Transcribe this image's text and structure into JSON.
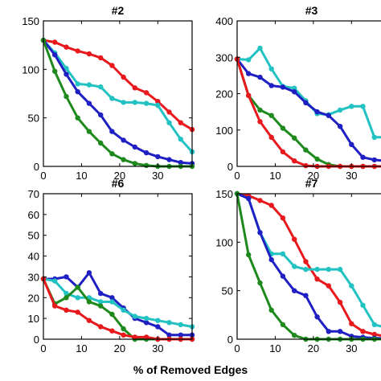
{
  "figure": {
    "xlabel": "% of Removed Edges",
    "colors": {
      "red": "#e8191c",
      "blue": "#1f1fc4",
      "green": "#1e8a1e",
      "cyan": "#22c2c2"
    }
  },
  "chart_data": [
    {
      "type": "line",
      "title": "#2",
      "xlabel": "% of Removed Edges",
      "ylabel": "",
      "xlim": [
        0,
        39
      ],
      "ylim": [
        0,
        150
      ],
      "xticks": [
        0,
        10,
        20,
        30
      ],
      "yticks": [
        0,
        50,
        100,
        150
      ],
      "series": [
        {
          "color": "red",
          "x": [
            0,
            3,
            6,
            9,
            12,
            15,
            18,
            21,
            24,
            27,
            30,
            33,
            36,
            39
          ],
          "values": [
            130,
            128,
            123,
            119,
            116,
            112,
            104,
            92,
            81,
            76,
            67,
            56,
            45,
            38
          ]
        },
        {
          "color": "cyan",
          "x": [
            0,
            3,
            6,
            9,
            12,
            15,
            18,
            21,
            24,
            27,
            30,
            33,
            36,
            39
          ],
          "values": [
            130,
            117,
            101,
            85,
            84,
            82,
            70,
            66,
            66,
            65,
            63,
            45,
            28,
            15
          ]
        },
        {
          "color": "blue",
          "x": [
            0,
            3,
            6,
            9,
            12,
            15,
            18,
            21,
            24,
            27,
            30,
            33,
            36,
            39
          ],
          "values": [
            130,
            115,
            95,
            77,
            65,
            53,
            36,
            27,
            20,
            14,
            10,
            7,
            4,
            3
          ]
        },
        {
          "color": "green",
          "x": [
            0,
            3,
            6,
            9,
            12,
            15,
            18,
            21,
            24,
            27,
            30,
            33,
            36,
            39
          ],
          "values": [
            130,
            98,
            72,
            50,
            36,
            24,
            13,
            7,
            3,
            1,
            0,
            0,
            0,
            0
          ]
        }
      ]
    },
    {
      "type": "line",
      "title": "#3",
      "xlabel": "% of Removed Edges",
      "ylabel": "",
      "xlim": [
        0,
        39
      ],
      "ylim": [
        0,
        400
      ],
      "xticks": [
        0,
        10,
        20,
        30
      ],
      "yticks": [
        0,
        100,
        200,
        300,
        400
      ],
      "series": [
        {
          "color": "cyan",
          "x": [
            0,
            3,
            6,
            9,
            12,
            15,
            18,
            21,
            24,
            27,
            30,
            33,
            36,
            39
          ],
          "values": [
            295,
            293,
            325,
            268,
            220,
            215,
            180,
            145,
            142,
            155,
            165,
            165,
            80,
            80
          ]
        },
        {
          "color": "blue",
          "x": [
            0,
            3,
            6,
            9,
            12,
            15,
            18,
            21,
            24,
            27,
            30,
            33,
            36,
            39
          ],
          "values": [
            295,
            255,
            245,
            222,
            218,
            205,
            175,
            150,
            140,
            110,
            60,
            25,
            18,
            15
          ]
        },
        {
          "color": "green",
          "x": [
            0,
            3,
            6,
            9,
            12,
            15,
            18,
            21,
            24,
            27,
            30,
            33,
            36,
            39
          ],
          "values": [
            295,
            195,
            155,
            140,
            105,
            78,
            45,
            20,
            5,
            0,
            0,
            0,
            0,
            0
          ]
        },
        {
          "color": "red",
          "x": [
            0,
            3,
            6,
            9,
            12,
            15,
            18,
            21,
            24,
            27,
            30,
            33,
            36,
            39
          ],
          "values": [
            295,
            195,
            123,
            80,
            40,
            15,
            2,
            0,
            0,
            0,
            0,
            0,
            0,
            0
          ]
        }
      ]
    },
    {
      "type": "line",
      "title": "#6",
      "xlabel": "% of Removed Edges",
      "ylabel": "",
      "xlim": [
        0,
        39
      ],
      "ylim": [
        0,
        70
      ],
      "xticks": [
        0,
        10,
        20,
        30
      ],
      "yticks": [
        0,
        10,
        20,
        30,
        40,
        50,
        60,
        70
      ],
      "series": [
        {
          "color": "blue",
          "x": [
            0,
            3,
            6,
            9,
            12,
            15,
            18,
            21,
            24,
            27,
            30,
            33,
            36,
            39
          ],
          "values": [
            29,
            29,
            30,
            25,
            32,
            22,
            20,
            15,
            10,
            8,
            6,
            2,
            2,
            2
          ]
        },
        {
          "color": "cyan",
          "x": [
            0,
            3,
            6,
            9,
            12,
            15,
            18,
            21,
            24,
            27,
            30,
            33,
            36,
            39
          ],
          "values": [
            29,
            28,
            22,
            20,
            20,
            18,
            18,
            14,
            11,
            10,
            9,
            8,
            7,
            6
          ]
        },
        {
          "color": "green",
          "x": [
            0,
            3,
            6,
            9,
            12,
            15,
            18,
            21,
            24,
            27,
            30,
            33,
            36,
            39
          ],
          "values": [
            29,
            17,
            20,
            25,
            18,
            16,
            12,
            5,
            0,
            0,
            0,
            0,
            0,
            0
          ]
        },
        {
          "color": "red",
          "x": [
            0,
            3,
            6,
            9,
            12,
            15,
            18,
            21,
            24,
            27,
            30,
            33,
            36,
            39
          ],
          "values": [
            29,
            16,
            14,
            13,
            9,
            6,
            4,
            2,
            1,
            1,
            0,
            0,
            0,
            0
          ]
        }
      ]
    },
    {
      "type": "line",
      "title": "#7",
      "xlabel": "% of Removed Edges",
      "ylabel": "",
      "xlim": [
        0,
        39
      ],
      "ylim": [
        0,
        150
      ],
      "xticks": [
        0,
        10,
        20,
        30
      ],
      "yticks": [
        0,
        50,
        100,
        150
      ],
      "series": [
        {
          "color": "red",
          "x": [
            0,
            3,
            6,
            9,
            12,
            15,
            18,
            21,
            24,
            27,
            30,
            33,
            36,
            39
          ],
          "values": [
            150,
            148,
            143,
            138,
            125,
            103,
            80,
            62,
            55,
            38,
            16,
            8,
            5,
            3
          ]
        },
        {
          "color": "cyan",
          "x": [
            0,
            3,
            6,
            9,
            12,
            15,
            18,
            21,
            24,
            27,
            30,
            33,
            36,
            39
          ],
          "values": [
            150,
            145,
            110,
            88,
            88,
            75,
            72,
            72,
            72,
            72,
            55,
            35,
            15,
            12
          ]
        },
        {
          "color": "blue",
          "x": [
            0,
            3,
            6,
            9,
            12,
            15,
            18,
            21,
            24,
            27,
            30,
            33,
            36,
            39
          ],
          "values": [
            150,
            145,
            110,
            82,
            65,
            50,
            45,
            23,
            8,
            8,
            3,
            2,
            1,
            1
          ]
        },
        {
          "color": "green",
          "x": [
            0,
            3,
            6,
            9,
            12,
            15,
            18,
            21,
            24,
            27,
            30,
            33,
            36,
            39
          ],
          "values": [
            150,
            87,
            58,
            30,
            15,
            4,
            0,
            0,
            0,
            0,
            0,
            0,
            0,
            0
          ]
        }
      ]
    }
  ]
}
